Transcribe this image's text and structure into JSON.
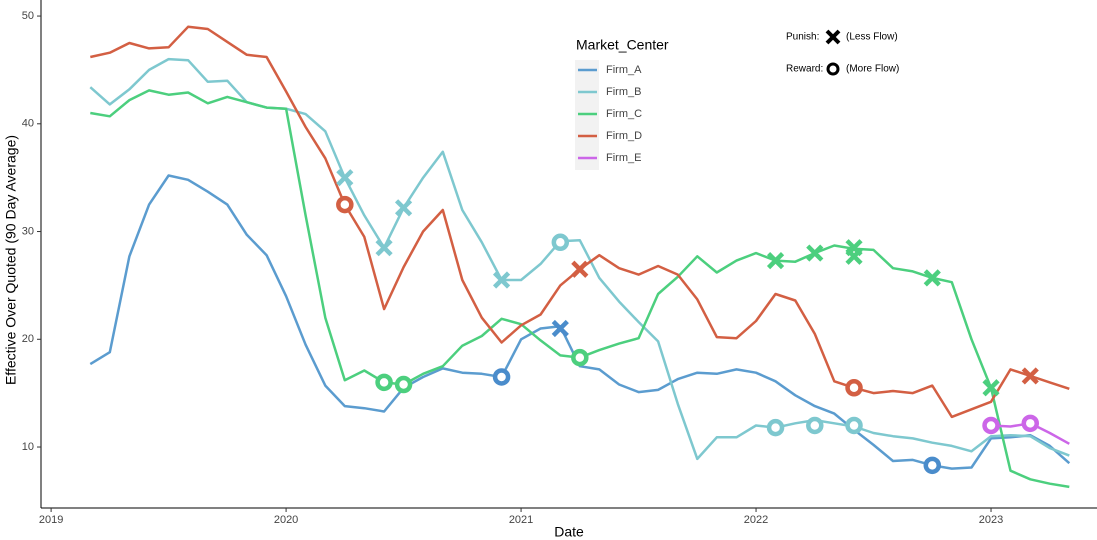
{
  "chart_data": {
    "type": "line",
    "x_label": "Date",
    "y_label": "Effective Over Quoted (90 Day Average)",
    "legend_title": "Market_Center",
    "annotations": {
      "punish": "Punish:",
      "punish_note": "(Less Flow)",
      "reward": "Reward:",
      "reward_note": "(More Flow)"
    },
    "x": [
      2019.167,
      2019.25,
      2019.333,
      2019.417,
      2019.5,
      2019.583,
      2019.667,
      2019.75,
      2019.833,
      2019.917,
      2020.0,
      2020.083,
      2020.167,
      2020.25,
      2020.333,
      2020.417,
      2020.5,
      2020.583,
      2020.667,
      2020.75,
      2020.833,
      2020.917,
      2021.0,
      2021.083,
      2021.167,
      2021.25,
      2021.333,
      2021.417,
      2021.5,
      2021.583,
      2021.667,
      2021.75,
      2021.833,
      2021.917,
      2022.0,
      2022.083,
      2022.167,
      2022.25,
      2022.333,
      2022.417,
      2022.5,
      2022.583,
      2022.667,
      2022.75,
      2022.833,
      2022.917,
      2023.0,
      2023.083,
      2023.167,
      2023.25,
      2023.333
    ],
    "series": [
      {
        "name": "Firm_A",
        "color": "#5b9ccf",
        "values": [
          17.7,
          18.8,
          27.7,
          32.5,
          35.2,
          34.8,
          33.7,
          32.5,
          29.7,
          27.8,
          24.0,
          19.5,
          15.7,
          13.8,
          13.6,
          13.3,
          15.5,
          16.5,
          17.3,
          16.9,
          16.8,
          16.5,
          20.0,
          21.0,
          21.2,
          17.5,
          17.2,
          15.8,
          15.1,
          15.3,
          16.3,
          16.9,
          16.8,
          17.2,
          16.9,
          16.1,
          14.8,
          13.8,
          13.1,
          11.6,
          10.2,
          8.7,
          8.8,
          8.3,
          8.0,
          8.1,
          10.8,
          10.9,
          11.1,
          10.1,
          8.5
        ]
      },
      {
        "name": "Firm_B",
        "color": "#7ec8cf",
        "values": [
          43.4,
          41.8,
          43.2,
          45.0,
          46.0,
          45.9,
          43.9,
          44.0,
          42.0,
          41.5,
          41.4,
          40.9,
          39.3,
          35.0,
          31.5,
          28.5,
          32.2,
          35.0,
          37.4,
          32.0,
          29.0,
          25.5,
          25.5,
          27.0,
          29.1,
          29.2,
          25.7,
          23.5,
          21.6,
          19.8,
          14.0,
          8.9,
          10.9,
          10.9,
          12.0,
          11.8,
          12.2,
          12.5,
          12.2,
          11.9,
          11.3,
          11.0,
          10.8,
          10.4,
          10.1,
          9.6,
          11.0,
          11.1,
          11.0,
          9.9,
          9.2
        ]
      },
      {
        "name": "Firm_C",
        "color": "#4ccf7e",
        "values": [
          41.0,
          40.7,
          42.2,
          43.1,
          42.7,
          42.9,
          41.9,
          42.5,
          42.0,
          41.5,
          41.4,
          31.5,
          22.0,
          16.2,
          17.1,
          16.0,
          15.8,
          16.8,
          17.5,
          19.4,
          20.3,
          21.9,
          21.4,
          19.9,
          18.5,
          18.3,
          19.0,
          19.6,
          20.1,
          24.2,
          25.8,
          27.7,
          26.2,
          27.3,
          28.0,
          27.3,
          27.2,
          28.0,
          28.7,
          28.4,
          28.3,
          26.6,
          26.3,
          25.7,
          25.3,
          20.0,
          15.5,
          7.8,
          7.0,
          6.6,
          6.3
        ]
      },
      {
        "name": "Firm_D",
        "color": "#d35f43",
        "values": [
          46.2,
          46.6,
          47.5,
          47.0,
          47.1,
          49.0,
          48.8,
          47.6,
          46.4,
          46.2,
          43.0,
          39.7,
          36.8,
          32.5,
          29.5,
          22.8,
          26.7,
          30.0,
          32.0,
          25.5,
          22.0,
          19.7,
          21.3,
          22.3,
          25.0,
          26.5,
          27.8,
          26.6,
          26.0,
          26.8,
          26.0,
          23.7,
          20.2,
          20.1,
          21.7,
          24.2,
          23.6,
          20.5,
          16.1,
          15.5,
          15.0,
          15.2,
          15.0,
          15.7,
          12.8,
          13.5,
          14.2,
          17.2,
          16.6,
          16.0,
          15.4
        ]
      },
      {
        "name": "Firm_E",
        "color": "#cc66e8",
        "values": [
          null,
          null,
          null,
          null,
          null,
          null,
          null,
          null,
          null,
          null,
          null,
          null,
          null,
          null,
          null,
          null,
          null,
          null,
          null,
          null,
          null,
          null,
          null,
          null,
          null,
          null,
          null,
          null,
          null,
          null,
          null,
          null,
          null,
          null,
          null,
          null,
          null,
          null,
          null,
          null,
          null,
          null,
          null,
          null,
          null,
          null,
          12.0,
          11.9,
          12.2,
          11.3,
          10.3
        ]
      }
    ],
    "punish_markers": [
      {
        "x": 2020.25,
        "y": 35.0,
        "color": "#7ec8cf"
      },
      {
        "x": 2020.417,
        "y": 28.5,
        "color": "#7ec8cf"
      },
      {
        "x": 2020.5,
        "y": 32.2,
        "color": "#7ec8cf"
      },
      {
        "x": 2020.917,
        "y": 25.5,
        "color": "#7ec8cf"
      },
      {
        "x": 2021.167,
        "y": 21.0,
        "color": "#4a8ccb"
      },
      {
        "x": 2021.25,
        "y": 26.5,
        "color": "#d35f43"
      },
      {
        "x": 2022.083,
        "y": 27.3,
        "color": "#4ccf7e"
      },
      {
        "x": 2022.25,
        "y": 28.0,
        "color": "#4ccf7e"
      },
      {
        "x": 2022.417,
        "y": 28.5,
        "color": "#4ccf7e"
      },
      {
        "x": 2022.417,
        "y": 27.7,
        "color": "#4ccf7e"
      },
      {
        "x": 2022.75,
        "y": 25.7,
        "color": "#4ccf7e"
      },
      {
        "x": 2023.0,
        "y": 15.5,
        "color": "#4ccf7e"
      },
      {
        "x": 2023.167,
        "y": 16.6,
        "color": "#d35f43"
      }
    ],
    "reward_markers": [
      {
        "x": 2020.25,
        "y": 32.5,
        "color": "#d35f43"
      },
      {
        "x": 2020.417,
        "y": 16.0,
        "color": "#4ccf7e"
      },
      {
        "x": 2020.5,
        "y": 15.8,
        "color": "#4ccf7e"
      },
      {
        "x": 2020.917,
        "y": 16.5,
        "color": "#4a8ccb"
      },
      {
        "x": 2021.167,
        "y": 29.0,
        "color": "#7ec8cf"
      },
      {
        "x": 2021.25,
        "y": 18.3,
        "color": "#4ccf7e"
      },
      {
        "x": 2022.083,
        "y": 11.8,
        "color": "#7ec8cf"
      },
      {
        "x": 2022.25,
        "y": 12.0,
        "color": "#7ec8cf"
      },
      {
        "x": 2022.417,
        "y": 12.0,
        "color": "#7ec8cf"
      },
      {
        "x": 2022.417,
        "y": 15.5,
        "color": "#d35f43"
      },
      {
        "x": 2022.75,
        "y": 8.3,
        "color": "#4a8ccb"
      },
      {
        "x": 2023.0,
        "y": 12.0,
        "color": "#cc66e8"
      },
      {
        "x": 2023.167,
        "y": 12.2,
        "color": "#cc66e8"
      }
    ],
    "xlim": [
      2018.957,
      2023.451
    ],
    "xticks": [
      2019,
      2020,
      2021,
      2022,
      2023
    ],
    "ylim": [
      4.34,
      51.49
    ],
    "yticks": [
      10,
      20,
      30,
      40,
      50
    ]
  }
}
